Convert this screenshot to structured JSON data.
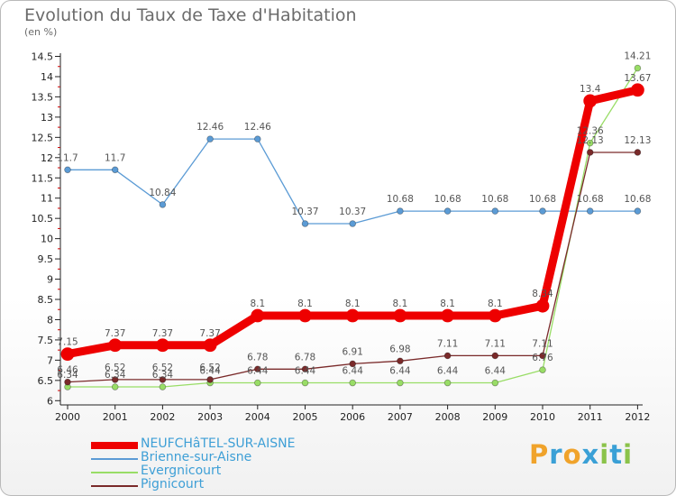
{
  "header": {
    "title": "Evolution du Taux de Taxe d'Habitation",
    "subtitle": "(en %)"
  },
  "brand": {
    "letters": [
      "P",
      "r",
      "o",
      "x",
      "i",
      "t",
      "i"
    ],
    "colors": [
      "#f0a32b",
      "#3aa0d6",
      "#f0a32b",
      "#3aa0d6",
      "#8bc34a",
      "#3aa0d6",
      "#8bc34a"
    ]
  },
  "chart_data": {
    "type": "line",
    "x": [
      "2000",
      "2001",
      "2002",
      "2003",
      "2004",
      "2005",
      "2006",
      "2007",
      "2008",
      "2009",
      "2010",
      "2011",
      "2012"
    ],
    "ylim": [
      6,
      14.5
    ],
    "yticks": [
      "6",
      "6.5",
      "7",
      "7.5",
      "8",
      "8.5",
      "9",
      "9.5",
      "10",
      "10.5",
      "11",
      "11.5",
      "12",
      "12.5",
      "13",
      "13.5",
      "14",
      "14.5"
    ],
    "grid": false,
    "legend_position": "bottom-left",
    "series": [
      {
        "name": "NEUFCHâTEL-SUR-AISNE",
        "color": "#ee0000",
        "values": [
          7.15,
          7.37,
          7.37,
          7.37,
          8.1,
          8.1,
          8.1,
          8.1,
          8.1,
          8.1,
          8.34,
          13.4,
          13.67
        ],
        "labels": [
          "7.15",
          "7.37",
          "7.37",
          "7.37",
          "8.1",
          "8.1",
          "8.1",
          "8.1",
          "8.1",
          "8.1",
          "8.34",
          "13.4",
          "13.67"
        ]
      },
      {
        "name": "Brienne-sur-Aisne",
        "color": "#5b9bd5",
        "values": [
          11.7,
          11.7,
          10.84,
          12.46,
          12.46,
          10.37,
          10.37,
          10.68,
          10.68,
          10.68,
          10.68,
          10.68,
          10.68
        ],
        "labels": [
          "11.7",
          "11.7",
          "10.84",
          "12.46",
          "12.46",
          "10.37",
          "10.37",
          "10.68",
          "10.68",
          "10.68",
          "10.68",
          "10.68",
          "10.68"
        ]
      },
      {
        "name": "Evergnicourt",
        "color": "#99dd66",
        "values": [
          6.34,
          6.34,
          6.34,
          6.44,
          6.44,
          6.44,
          6.44,
          6.44,
          6.44,
          6.44,
          6.76,
          12.36,
          14.21
        ],
        "labels": [
          "6.34",
          "6.34",
          "6.34",
          "6.44",
          "6.44",
          "6.44",
          "6.44",
          "6.44",
          "6.44",
          "6.44",
          "6.76",
          "12.36",
          "14.21"
        ]
      },
      {
        "name": "Pignicourt",
        "color": "#7a2a2a",
        "values": [
          6.46,
          6.52,
          6.52,
          6.52,
          6.78,
          6.78,
          6.91,
          6.98,
          7.11,
          7.11,
          7.11,
          12.13,
          12.13
        ],
        "labels": [
          "6.46",
          "6.52",
          "6.52",
          "6.52",
          "6.78",
          "6.78",
          "6.91",
          "6.98",
          "7.11",
          "7.11",
          "7.11",
          "12.13",
          "12.13"
        ]
      }
    ]
  }
}
